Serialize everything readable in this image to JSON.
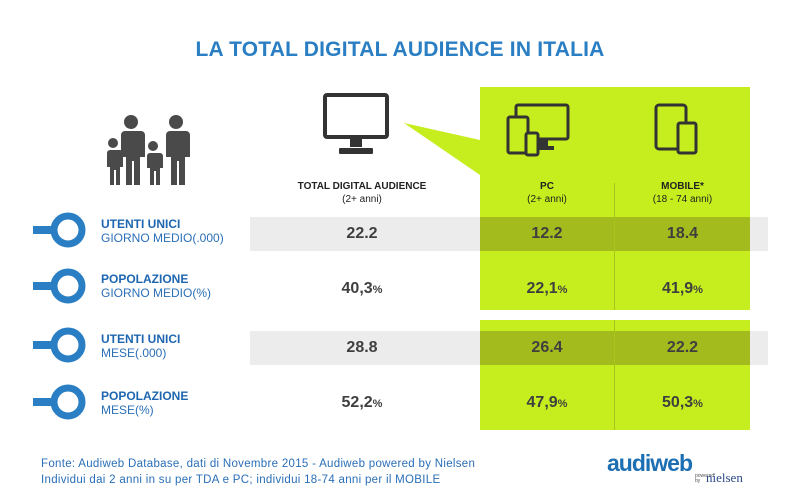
{
  "title": "LA TOTAL DIGITAL AUDIENCE IN ITALIA",
  "columns": {
    "tda": {
      "label": "TOTAL DIGITAL AUDIENCE",
      "sub": "(2+ anni)"
    },
    "pc": {
      "label": "PC",
      "sub": "(2+ anni)"
    },
    "mobile": {
      "label": "MOBILE*",
      "sub": "(18 - 74 anni)"
    }
  },
  "rows": [
    {
      "label1": "UTENTI UNICI",
      "label2": "GIORNO  MEDIO(.000)",
      "tda": "22.2",
      "pc": "12.2",
      "mobile": "18.4",
      "tda_unit": "",
      "pc_unit": "",
      "mobile_unit": ""
    },
    {
      "label1": "POPOLAZIONE",
      "label2": "GIORNO  MEDIO(%)",
      "tda": "40,3",
      "pc": "22,1",
      "mobile": "41,9",
      "tda_unit": "%",
      "pc_unit": "%",
      "mobile_unit": "%"
    },
    {
      "label1": "UTENTI UNICI",
      "label2": "MESE(.000)",
      "tda": "28.8",
      "pc": "26.4",
      "mobile": "22.2",
      "tda_unit": "",
      "pc_unit": "",
      "mobile_unit": ""
    },
    {
      "label1": "POPOLAZIONE",
      "label2": "MESE(%)",
      "tda": "52,2",
      "pc": "47,9",
      "mobile": "50,3",
      "tda_unit": "%",
      "pc_unit": "%",
      "mobile_unit": "%"
    }
  ],
  "footer": {
    "line1": "Fonte: Audiweb Database, dati di Novembre 2015 - Audiweb powered by Nielsen",
    "line2": "Individui dai 2 anni in su  per TDA e PC; individui 18-74 anni per il MOBILE"
  },
  "logo": {
    "main": "audiweb",
    "powered": "powered by",
    "partner": "nielsen"
  },
  "colors": {
    "title": "#2a7ec3",
    "panel": "#c6ee1e",
    "panel_dark": "#a4bb1d",
    "label": "#1e66b0"
  },
  "icons": [
    "family-icon",
    "monitor-icon",
    "pc-devices-icon",
    "tablet-phone-icon",
    "key-icon"
  ]
}
